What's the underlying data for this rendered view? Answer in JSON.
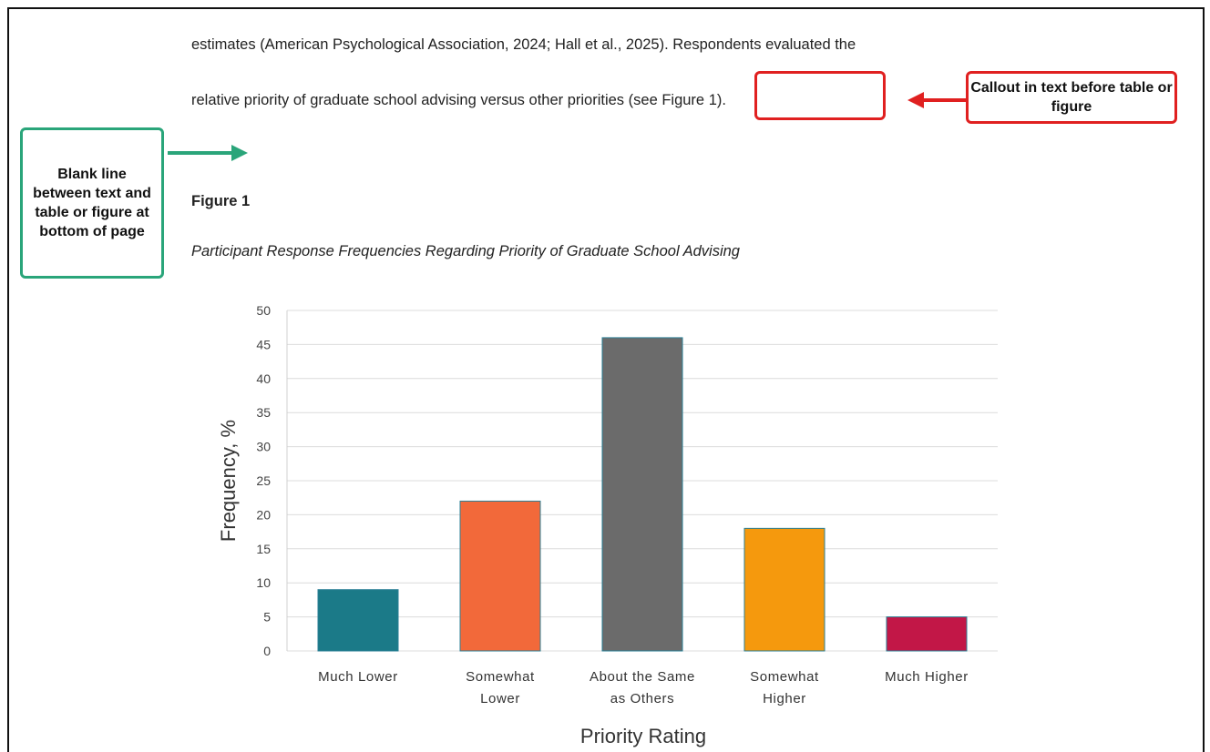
{
  "paragraph": {
    "line1": "estimates (American Psychological Association, 2024; Hall et al., 2025). Respondents evaluated the",
    "line2_before": "relative priority of graduate school advising versus other priorities",
    "line2_callout": "(see Figure 1)",
    "line2_after": "."
  },
  "annotations": {
    "callout_note": "Callout in text before table or figure",
    "blank_line_note": "Blank line between text and table or figure at bottom of page"
  },
  "figure": {
    "label": "Figure 1",
    "title": "Participant Response Frequencies Regarding Priority of Graduate School Advising"
  },
  "chart_data": {
    "type": "bar",
    "categories": [
      "Much Lower",
      "Somewhat Lower",
      "About the Same as Others",
      "Somewhat Higher",
      "Much Higher"
    ],
    "values": [
      9,
      22,
      46,
      18,
      5
    ],
    "colors": [
      "#1b7a88",
      "#f2693a",
      "#6b6b6b",
      "#f5990d",
      "#c21747"
    ],
    "x_label": "Priority Rating",
    "y_label": "Frequency, %",
    "ylim": [
      0,
      50
    ],
    "yticks": [
      0,
      5,
      10,
      15,
      20,
      25,
      30,
      35,
      40,
      45,
      50
    ],
    "grid": true
  }
}
